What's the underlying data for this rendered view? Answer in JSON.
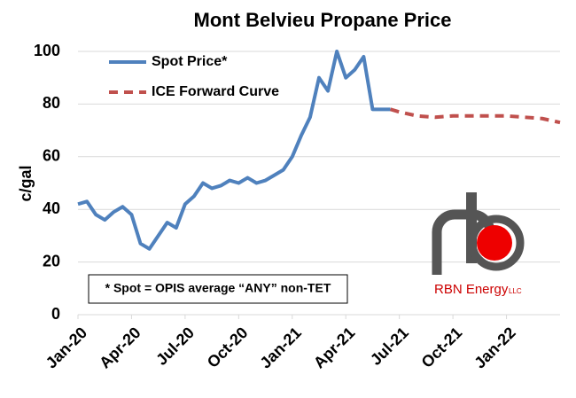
{
  "chart_data": {
    "type": "line",
    "title": "Mont Belvieu Propane Price",
    "y_label": "c/gal",
    "annotation": "* Spot = OPIS average “ANY” non-TET",
    "logo": {
      "main": "RBN Energy",
      "suffix": "LLC"
    },
    "xlim": [
      0,
      27
    ],
    "xticks": [
      {
        "value": 0,
        "label": "Jan-20"
      },
      {
        "value": 3,
        "label": "Apr-20"
      },
      {
        "value": 6,
        "label": "Jul-20"
      },
      {
        "value": 9,
        "label": "Oct-20"
      },
      {
        "value": 12,
        "label": "Jan-21"
      },
      {
        "value": 15,
        "label": "Apr-21"
      },
      {
        "value": 18,
        "label": "Jul-21"
      },
      {
        "value": 21,
        "label": "Oct-21"
      },
      {
        "value": 24,
        "label": "Jan-22"
      }
    ],
    "ylim": [
      0,
      100
    ],
    "yticks": [
      0,
      20,
      40,
      60,
      80,
      100
    ],
    "grid": true,
    "series": [
      {
        "name": "Spot Price*",
        "color": "#4f81bd",
        "dashed": false,
        "x": [
          0,
          0.5,
          1,
          1.5,
          2,
          2.5,
          3,
          3.5,
          4,
          4.5,
          5,
          5.5,
          6,
          6.5,
          7,
          7.5,
          8,
          8.5,
          9,
          9.5,
          10,
          10.5,
          11,
          11.5,
          12,
          12.5,
          13,
          13.5,
          14,
          14.5,
          15,
          15.5,
          16,
          16.5,
          17,
          17.5
        ],
        "values": [
          42,
          43,
          38,
          36,
          39,
          41,
          38,
          27,
          25,
          30,
          35,
          33,
          42,
          45,
          50,
          48,
          49,
          51,
          50,
          52,
          50,
          51,
          53,
          55,
          60,
          68,
          75,
          90,
          85,
          100,
          90,
          93,
          98,
          78,
          78,
          78
        ]
      },
      {
        "name": "ICE Forward Curve",
        "color": "#c0504d",
        "dashed": true,
        "x": [
          17.5,
          18,
          19,
          20,
          21,
          22,
          23,
          24,
          25,
          26,
          27
        ],
        "values": [
          78,
          77,
          75.5,
          75,
          75.5,
          75.5,
          75.5,
          75.5,
          75,
          74.5,
          73
        ]
      }
    ]
  }
}
